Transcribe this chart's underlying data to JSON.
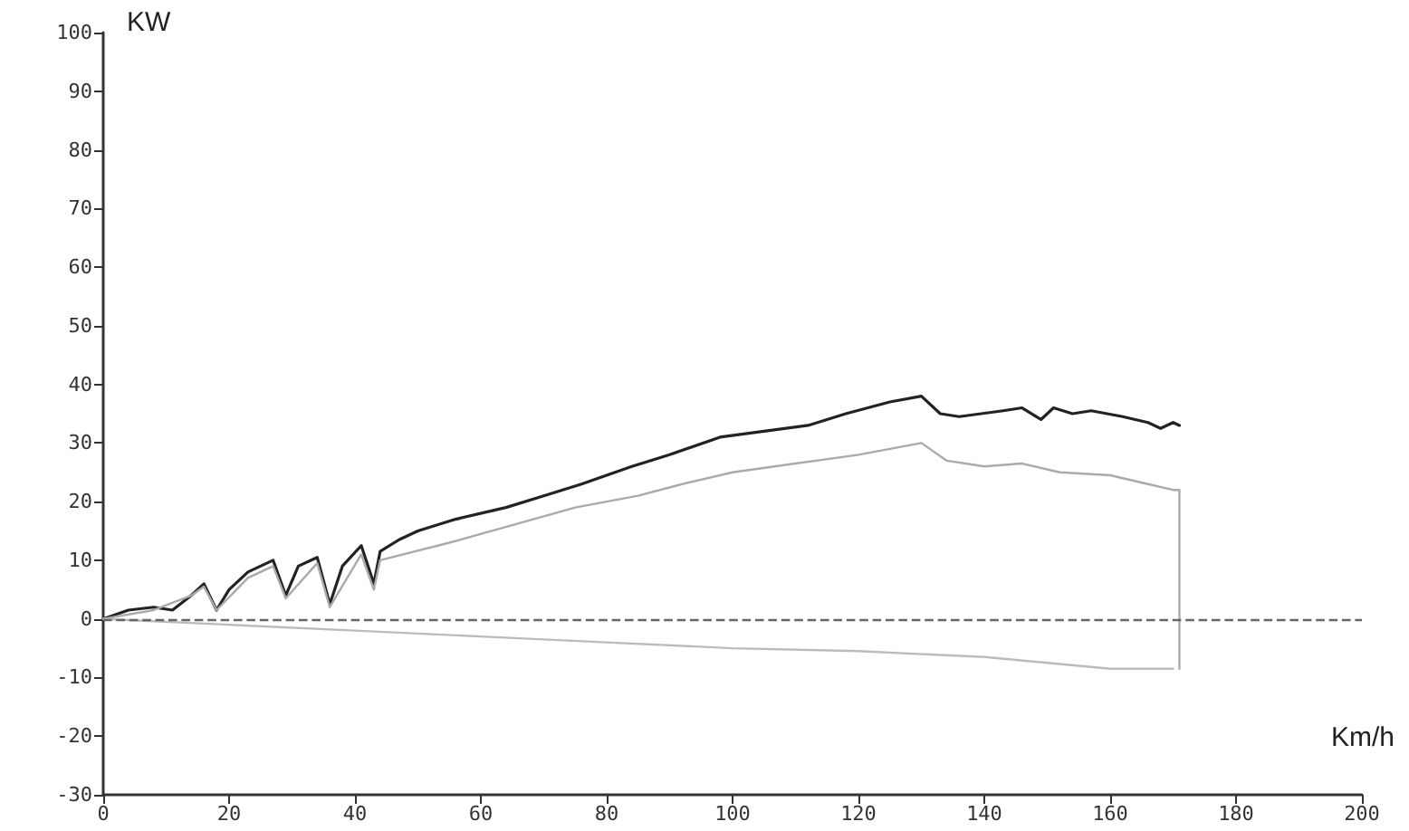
{
  "chart_data": {
    "type": "line",
    "xlabel": "Km/h",
    "ylabel": "KW",
    "xlim": [
      0,
      200
    ],
    "xticks": [
      0,
      20,
      40,
      60,
      80,
      100,
      120,
      140,
      160,
      180,
      200
    ],
    "ylim": [
      -30,
      100
    ],
    "yticks": [
      -30,
      -20,
      -10,
      0,
      10,
      20,
      30,
      40,
      50,
      60,
      70,
      80,
      90,
      100
    ],
    "marker": "none",
    "line_style": "solid",
    "ref_lines": [
      {
        "axis": "y",
        "value": 0,
        "label": null,
        "color": "#666666",
        "line_style": "dashed"
      }
    ],
    "series": [
      {
        "color": "#222222",
        "x": [
          0,
          4,
          8,
          11,
          14,
          16,
          18,
          20,
          23,
          27,
          29,
          31,
          34,
          36,
          38,
          41,
          43,
          44,
          47,
          50,
          56,
          64,
          70,
          76,
          84,
          90,
          98,
          105,
          112,
          118,
          125,
          130,
          133,
          136,
          143,
          146,
          149,
          151,
          154,
          157,
          162,
          166,
          168,
          170,
          171
        ],
        "values": [
          0,
          1.5,
          2,
          1.5,
          4,
          6,
          1.5,
          5,
          8,
          10,
          4,
          9,
          10.5,
          2.5,
          9,
          12.5,
          6,
          11.5,
          13.5,
          15,
          17,
          19,
          21,
          23,
          26,
          28,
          31,
          32,
          33,
          35,
          37,
          38,
          35,
          34.5,
          35.5,
          36,
          34,
          36,
          35,
          35.5,
          34.5,
          33.5,
          32.5,
          33.5,
          33
        ]
      },
      {
        "color": "#aaaaaa",
        "x": [
          0,
          8,
          14,
          16,
          18,
          23,
          27,
          29,
          34,
          36,
          41,
          43,
          44,
          55,
          65,
          75,
          85,
          92,
          100,
          110,
          120,
          130,
          134,
          140,
          146,
          152,
          160,
          166,
          170,
          171,
          171
        ],
        "values": [
          0,
          1.5,
          4,
          5.5,
          1.5,
          7,
          9,
          3.5,
          9.5,
          2,
          11,
          5,
          10,
          13,
          16,
          19,
          21,
          23,
          25,
          26.5,
          28,
          30,
          27,
          26,
          26.5,
          25,
          24.5,
          23,
          22,
          22,
          -8.5
        ]
      },
      {
        "color": "#bbbbbb",
        "x": [
          0,
          20,
          40,
          60,
          80,
          100,
          120,
          140,
          160,
          170
        ],
        "values": [
          0,
          -1,
          -2,
          -3,
          -4,
          -5,
          -5.5,
          -6.5,
          -8.5,
          -8.5
        ]
      }
    ]
  }
}
